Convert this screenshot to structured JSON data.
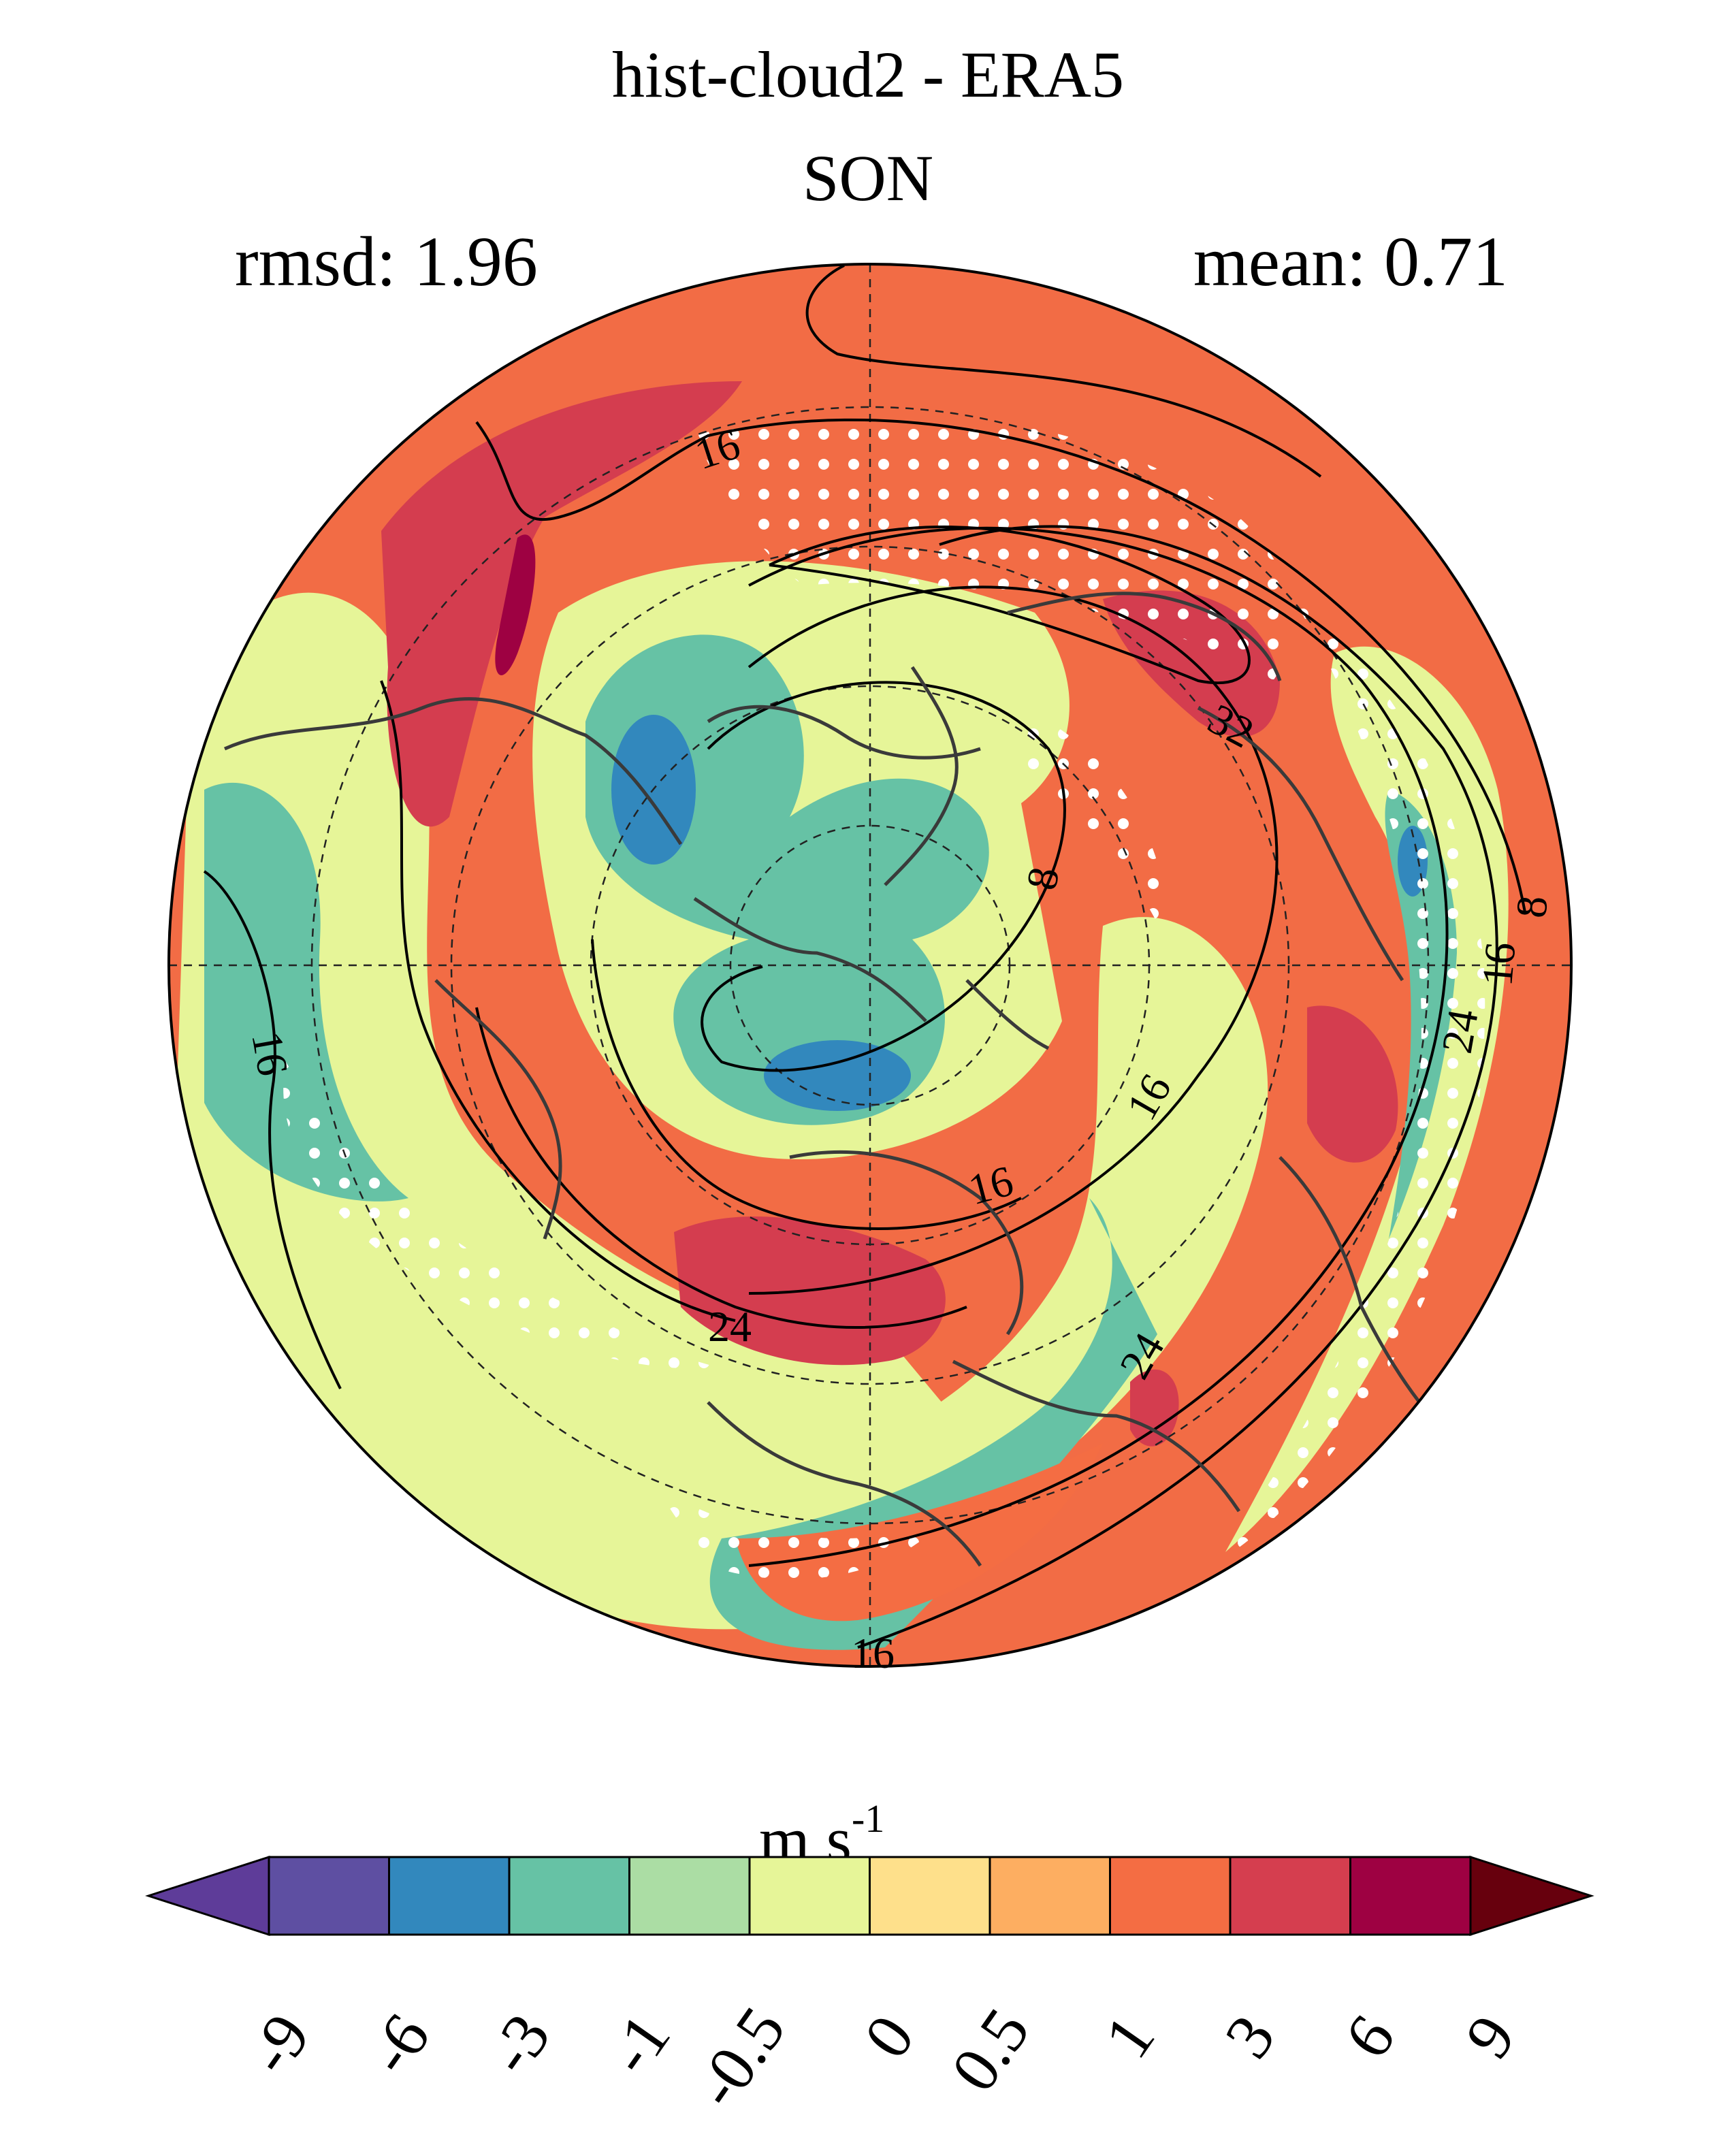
{
  "title": "hist-cloud2 - ERA5",
  "season": "SON",
  "rmsd": "rmsd: 1.96",
  "mean": "mean: 0.71",
  "map": {
    "projection": "north-polar-stereographic",
    "field": "wind speed difference (shaded)",
    "contours": "climatology (black lines)",
    "contour_labels": [
      "16",
      "8",
      "32",
      "16",
      "24",
      "16",
      "16",
      "16",
      "24",
      "24",
      "16",
      "8"
    ],
    "stippling": "white dots",
    "colors": {
      "bg": "#f26c45",
      "dark_red": "#9e0142",
      "red": "#d43d4f",
      "orange": "#f46d43",
      "light_orange": "#fdae61",
      "pale_yellow": "#fee08b",
      "yellow_green": "#e6f598",
      "light_green": "#abdda4",
      "teal": "#66c2a5",
      "blue": "#3288bd",
      "coast": "#3a3a3a"
    }
  },
  "colorbar": {
    "units_base": "m s",
    "units_exp": "-1",
    "ticks": [
      "-9",
      "-6",
      "-3",
      "-1",
      "-0.5",
      "0",
      "0.5",
      "1",
      "3",
      "6",
      "9"
    ],
    "colors": [
      "#5e3c99",
      "#5e4fa2",
      "#3288bd",
      "#66c2a5",
      "#abdda4",
      "#e6f598",
      "#fee08b",
      "#fdae61",
      "#f46d43",
      "#d53e4f",
      "#9e0142",
      "#67000d"
    ]
  }
}
